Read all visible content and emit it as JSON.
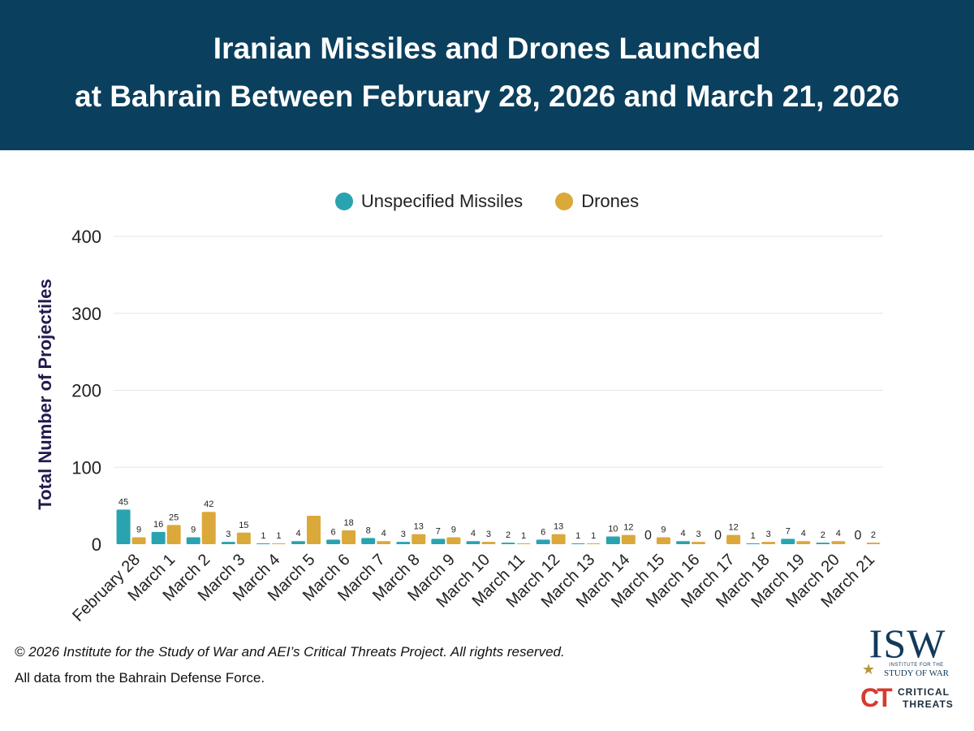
{
  "header": {
    "title_line1": "Iranian Missiles and Drones Launched",
    "title_line2": "at Bahrain Between February 28, 2026 and March 21, 2026"
  },
  "footer": {
    "copyright": "© 2026 Institute for the Study of War and AEI’s Critical Threats Project. All rights reserved.",
    "source": "All data from the Bahrain Defense Force."
  },
  "logos": {
    "isw_letters": "ISW",
    "isw_sub1": "INSTITUTE FOR THE",
    "isw_sub2": "STUDY OF WAR",
    "ct_mark": "CT",
    "ct_word1": "CRITICAL",
    "ct_word2": "THREATS"
  },
  "colors": {
    "header_bg": "#0b3f5e",
    "missiles": "#2aa3b0",
    "drones": "#dba83a",
    "grid": "#e6e6e6"
  },
  "chart_data": {
    "type": "bar",
    "title": "Iranian Missiles and Drones Launched at Bahrain Between February 28, 2026 and March 21, 2026",
    "xlabel": "",
    "ylabel": "Total Number of Projectiles",
    "ylim": [
      0,
      400
    ],
    "yticks": [
      0,
      100,
      200,
      300,
      400
    ],
    "grid": true,
    "legend_position": "top-center",
    "categories": [
      "February 28",
      "March 1",
      "March 2",
      "March 3",
      "March 4",
      "March 5",
      "March 6",
      "March 7",
      "March 8",
      "March 9",
      "March 10",
      "March 11",
      "March 12",
      "March 13",
      "March 14",
      "March 15",
      "March 16",
      "March 17",
      "March 18",
      "March 19",
      "March 20",
      "March 21"
    ],
    "series": [
      {
        "name": "Unspecified Missiles",
        "values": [
          45,
          16,
          9,
          3,
          1,
          4,
          6,
          8,
          3,
          7,
          4,
          2,
          6,
          1,
          10,
          0,
          4,
          0,
          1,
          7,
          2,
          0
        ],
        "labels": [
          "45",
          "16",
          "9",
          "3",
          "1",
          "4",
          "6",
          "8",
          "3",
          "7",
          "4",
          "2",
          "6",
          "1",
          "10",
          "0",
          "4",
          "0",
          "1",
          "7",
          "2",
          "0"
        ]
      },
      {
        "name": "Drones",
        "values": [
          9,
          25,
          42,
          15,
          1,
          37,
          18,
          4,
          13,
          9,
          3,
          1,
          13,
          1,
          12,
          9,
          3,
          12,
          3,
          4,
          4,
          2
        ],
        "labels": [
          "9",
          "25",
          "42",
          "15",
          "1",
          "",
          "18",
          "4",
          "13",
          "9",
          "3",
          "1",
          "13",
          "1",
          "12",
          "9",
          "3",
          "12",
          "3",
          "4",
          "4",
          "2"
        ]
      }
    ]
  }
}
